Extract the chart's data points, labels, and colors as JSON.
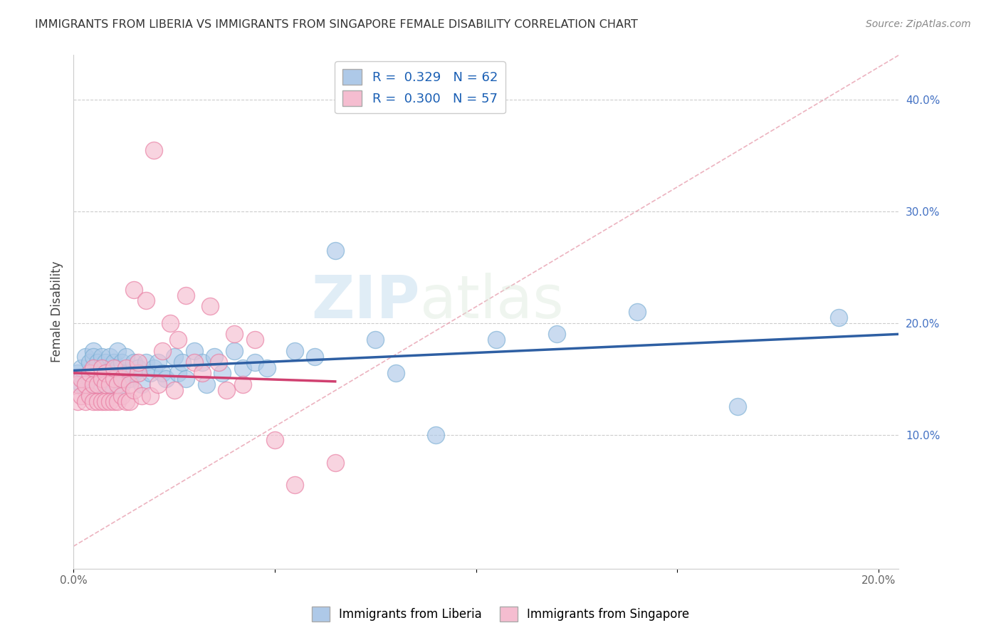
{
  "title": "IMMIGRANTS FROM LIBERIA VS IMMIGRANTS FROM SINGAPORE FEMALE DISABILITY CORRELATION CHART",
  "source": "Source: ZipAtlas.com",
  "ylabel": "Female Disability",
  "xlim": [
    0.0,
    0.205
  ],
  "ylim": [
    -0.02,
    0.44
  ],
  "x_ticks": [
    0.0,
    0.05,
    0.1,
    0.15,
    0.2
  ],
  "x_tick_labels": [
    "0.0%",
    "",
    "",
    "",
    "20.0%"
  ],
  "y_ticks_right": [
    0.1,
    0.2,
    0.3,
    0.4
  ],
  "y_tick_labels_right": [
    "10.0%",
    "20.0%",
    "30.0%",
    "40.0%"
  ],
  "liberia_color": "#aec9e8",
  "liberia_edge_color": "#7bafd4",
  "singapore_color": "#f5bdd0",
  "singapore_edge_color": "#e87aa0",
  "liberia_line_color": "#2e5fa3",
  "singapore_line_color": "#d04070",
  "diagonal_color": "#e0b0b8",
  "R_liberia": 0.329,
  "N_liberia": 62,
  "R_singapore": 0.3,
  "N_singapore": 57,
  "watermark_zip": "ZIP",
  "watermark_atlas": "atlas",
  "background_color": "#ffffff",
  "liberia_x": [
    0.001,
    0.002,
    0.002,
    0.003,
    0.003,
    0.004,
    0.004,
    0.005,
    0.005,
    0.005,
    0.006,
    0.006,
    0.007,
    0.007,
    0.008,
    0.008,
    0.009,
    0.009,
    0.01,
    0.01,
    0.01,
    0.011,
    0.011,
    0.012,
    0.012,
    0.013,
    0.013,
    0.014,
    0.015,
    0.015,
    0.016,
    0.017,
    0.018,
    0.019,
    0.02,
    0.021,
    0.022,
    0.023,
    0.025,
    0.026,
    0.027,
    0.028,
    0.03,
    0.032,
    0.033,
    0.035,
    0.037,
    0.04,
    0.042,
    0.045,
    0.048,
    0.055,
    0.06,
    0.065,
    0.075,
    0.08,
    0.09,
    0.105,
    0.12,
    0.14,
    0.165,
    0.19
  ],
  "liberia_y": [
    0.155,
    0.16,
    0.145,
    0.17,
    0.14,
    0.165,
    0.15,
    0.175,
    0.155,
    0.17,
    0.145,
    0.165,
    0.155,
    0.17,
    0.15,
    0.165,
    0.145,
    0.17,
    0.155,
    0.165,
    0.14,
    0.16,
    0.175,
    0.145,
    0.165,
    0.155,
    0.17,
    0.15,
    0.165,
    0.155,
    0.16,
    0.145,
    0.165,
    0.155,
    0.16,
    0.165,
    0.155,
    0.15,
    0.17,
    0.155,
    0.165,
    0.15,
    0.175,
    0.165,
    0.145,
    0.17,
    0.155,
    0.175,
    0.16,
    0.165,
    0.16,
    0.175,
    0.17,
    0.265,
    0.185,
    0.155,
    0.1,
    0.185,
    0.19,
    0.21,
    0.125,
    0.205
  ],
  "singapore_x": [
    0.001,
    0.001,
    0.002,
    0.002,
    0.003,
    0.003,
    0.004,
    0.004,
    0.005,
    0.005,
    0.005,
    0.006,
    0.006,
    0.007,
    0.007,
    0.007,
    0.008,
    0.008,
    0.008,
    0.009,
    0.009,
    0.01,
    0.01,
    0.01,
    0.011,
    0.011,
    0.012,
    0.012,
    0.013,
    0.013,
    0.014,
    0.014,
    0.015,
    0.015,
    0.016,
    0.016,
    0.017,
    0.018,
    0.019,
    0.02,
    0.021,
    0.022,
    0.024,
    0.025,
    0.026,
    0.028,
    0.03,
    0.032,
    0.034,
    0.036,
    0.038,
    0.04,
    0.042,
    0.045,
    0.05,
    0.055,
    0.065
  ],
  "singapore_y": [
    0.13,
    0.145,
    0.135,
    0.15,
    0.13,
    0.145,
    0.135,
    0.155,
    0.13,
    0.145,
    0.16,
    0.13,
    0.145,
    0.13,
    0.15,
    0.16,
    0.13,
    0.145,
    0.155,
    0.13,
    0.145,
    0.13,
    0.15,
    0.16,
    0.13,
    0.145,
    0.135,
    0.15,
    0.13,
    0.16,
    0.13,
    0.145,
    0.23,
    0.14,
    0.155,
    0.165,
    0.135,
    0.22,
    0.135,
    0.355,
    0.145,
    0.175,
    0.2,
    0.14,
    0.185,
    0.225,
    0.165,
    0.155,
    0.215,
    0.165,
    0.14,
    0.19,
    0.145,
    0.185,
    0.095,
    0.055,
    0.075
  ]
}
